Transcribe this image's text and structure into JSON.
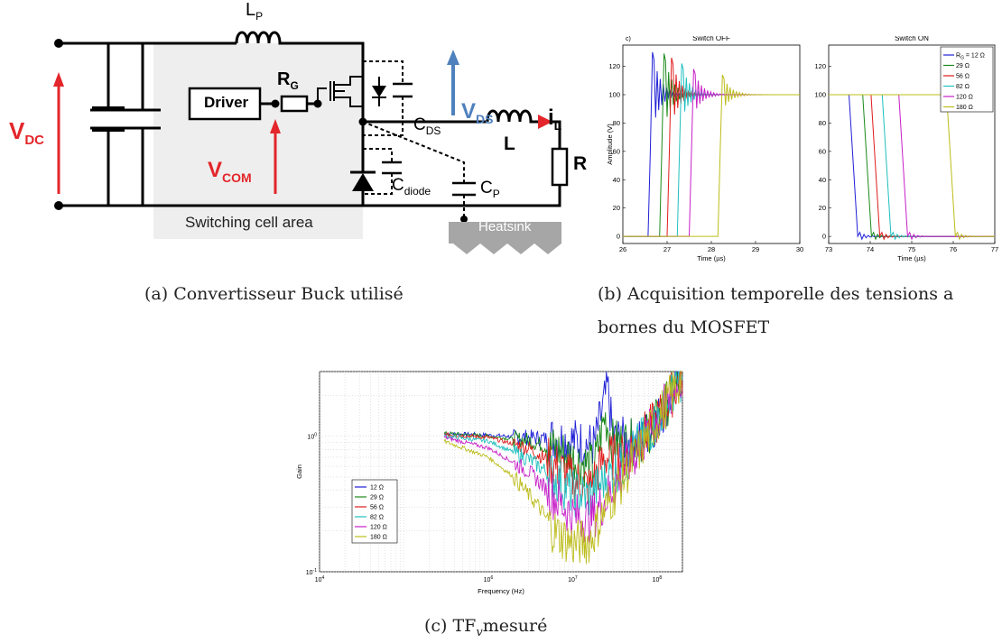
{
  "captions": {
    "a": "(a) Convertisseur Buck utilisé",
    "b_line1": "(b) Acquisition temporelle des tensions a",
    "b_line2": "bornes du MOSFET",
    "c_pre": "(c) TF",
    "c_sub": "v",
    "c_post": "mesuré"
  },
  "circuit": {
    "LP": "L",
    "LP_sub": "P",
    "RG": "R",
    "RG_sub": "G",
    "driver": "Driver",
    "CDS": "C",
    "CDS_sub": "DS",
    "VDS": "V",
    "VDS_sub": "DS",
    "iL": "i",
    "iL_sub": "L",
    "L": "L",
    "R": "R",
    "VDC": "V",
    "VDC_sub": "DC",
    "VCOM": "V",
    "VCOM_sub": "COM",
    "Cdiode": "C",
    "Cdiode_sub": "diode",
    "CP": "C",
    "CP_sub": "P",
    "area": "Switching cell area",
    "heatsink": "Heatsink",
    "colors": {
      "red": "#e3262b",
      "blue": "#4f81bd",
      "area": "#eeeeee"
    }
  },
  "chart_data": [
    {
      "type": "line",
      "panel_tag": "c)",
      "title": "Switch OFF",
      "xlabel": "Time (µs)",
      "ylabel": "Amplitude (V)",
      "xlim": [
        26,
        30
      ],
      "ylim": [
        -5,
        135
      ],
      "xticks": [
        "26",
        "27",
        "28",
        "29",
        "30"
      ],
      "yticks": [
        "0",
        "20",
        "40",
        "60",
        "80",
        "100",
        "120"
      ],
      "series": [
        {
          "color": "#1f1fd6",
          "t": 26.62,
          "peak": 130
        },
        {
          "color": "#1a8a1a",
          "t": 26.88,
          "peak": 129
        },
        {
          "color": "#e01b1b",
          "t": 27.05,
          "peak": 126
        },
        {
          "color": "#1fbfbf",
          "t": 27.28,
          "peak": 122
        },
        {
          "color": "#c81fc8",
          "t": 27.55,
          "peak": 118
        },
        {
          "color": "#bcbc1a",
          "t": 28.2,
          "peak": 114
        }
      ]
    },
    {
      "type": "line",
      "title": "Switch ON",
      "xlabel": "Time (µs)",
      "xlim": [
        73,
        77
      ],
      "ylim": [
        -5,
        135
      ],
      "xticks": [
        "73",
        "74",
        "75",
        "76",
        "77"
      ],
      "yticks": [
        "0",
        "20",
        "40",
        "60",
        "80",
        "100",
        "120"
      ],
      "legend": [
        "R = 12 Ω",
        "29 Ω",
        "56 Ω",
        "82 Ω",
        "120 Ω",
        "180 Ω"
      ],
      "legend_first_sub": "G",
      "series": [
        {
          "name": "R = 12 Ω",
          "color": "#1f1fd6",
          "t": 73.55
        },
        {
          "name": "29 Ω",
          "color": "#1a8a1a",
          "t": 73.88
        },
        {
          "name": "56 Ω",
          "color": "#e01b1b",
          "t": 74.08
        },
        {
          "name": "82 Ω",
          "color": "#1fbfbf",
          "t": 74.35
        },
        {
          "name": "120 Ω",
          "color": "#c81fc8",
          "t": 74.75
        },
        {
          "name": "180 Ω",
          "color": "#bcbc1a",
          "t": 75.9
        }
      ]
    },
    {
      "type": "line",
      "xscale": "log",
      "yscale": "log",
      "xlabel": "Frequency (Hz)",
      "ylabel": "Gain",
      "xlim": [
        10000,
        200000000
      ],
      "ylim": [
        0.1,
        3
      ],
      "xticks": [
        {
          "base": "10",
          "exp": "4"
        },
        {
          "base": "10",
          "exp": "6"
        },
        {
          "base": "10",
          "exp": "7"
        },
        {
          "base": "10",
          "exp": "8"
        }
      ],
      "yticks": [
        {
          "base": "10",
          "exp": "0"
        },
        {
          "base": "10",
          "exp": "-1"
        }
      ],
      "legend": [
        "12 Ω",
        "29 Ω",
        "56 Ω",
        "82 Ω",
        "120 Ω",
        "180 Ω"
      ],
      "series": [
        {
          "name": "12 Ω",
          "color": "#1f1fd6",
          "points": [
            [
              300000,
              1.05
            ],
            [
              1000000,
              1.02
            ],
            [
              5000000,
              0.96
            ],
            [
              10000000,
              0.93
            ],
            [
              18000000,
              0.85
            ],
            [
              26000000,
              2.3
            ],
            [
              30000000,
              0.95
            ],
            [
              60000000,
              0.9
            ],
            [
              100000000,
              1.3
            ],
            [
              200000000,
              2.8
            ]
          ]
        },
        {
          "name": "29 Ω",
          "color": "#1a8a1a",
          "points": [
            [
              300000,
              1.05
            ],
            [
              1000000,
              1.0
            ],
            [
              3000000,
              0.93
            ],
            [
              7000000,
              0.78
            ],
            [
              12000000,
              0.65
            ],
            [
              18000000,
              0.6
            ],
            [
              24000000,
              1.4
            ],
            [
              30000000,
              0.9
            ],
            [
              60000000,
              0.9
            ],
            [
              100000000,
              1.3
            ],
            [
              200000000,
              2.8
            ]
          ]
        },
        {
          "name": "56 Ω",
          "color": "#e01b1b",
          "points": [
            [
              300000,
              1.03
            ],
            [
              1000000,
              0.98
            ],
            [
              3000000,
              0.82
            ],
            [
              6000000,
              0.62
            ],
            [
              10000000,
              0.48
            ],
            [
              16000000,
              0.42
            ],
            [
              24000000,
              0.7
            ],
            [
              40000000,
              0.7
            ],
            [
              100000000,
              1.3
            ],
            [
              200000000,
              2.8
            ]
          ]
        },
        {
          "name": "82 Ω",
          "color": "#1fbfbf",
          "points": [
            [
              300000,
              1.0
            ],
            [
              1000000,
              0.92
            ],
            [
              3000000,
              0.68
            ],
            [
              6000000,
              0.5
            ],
            [
              10000000,
              0.38
            ],
            [
              16000000,
              0.36
            ],
            [
              25000000,
              0.5
            ],
            [
              40000000,
              0.62
            ],
            [
              100000000,
              1.3
            ],
            [
              200000000,
              2.8
            ]
          ]
        },
        {
          "name": "120 Ω",
          "color": "#c81fc8",
          "points": [
            [
              300000,
              0.98
            ],
            [
              1000000,
              0.82
            ],
            [
              3000000,
              0.55
            ],
            [
              6000000,
              0.36
            ],
            [
              10000000,
              0.26
            ],
            [
              16000000,
              0.24
            ],
            [
              25000000,
              0.35
            ],
            [
              40000000,
              0.55
            ],
            [
              100000000,
              1.3
            ],
            [
              200000000,
              2.8
            ]
          ]
        },
        {
          "name": "180 Ω",
          "color": "#bcbc1a",
          "points": [
            [
              300000,
              0.92
            ],
            [
              1000000,
              0.7
            ],
            [
              2000000,
              0.5
            ],
            [
              4000000,
              0.3
            ],
            [
              6000000,
              0.2
            ],
            [
              10000000,
              0.16
            ],
            [
              16000000,
              0.17
            ],
            [
              25000000,
              0.3
            ],
            [
              40000000,
              0.5
            ],
            [
              100000000,
              1.3
            ],
            [
              200000000,
              2.8
            ]
          ]
        }
      ]
    }
  ]
}
